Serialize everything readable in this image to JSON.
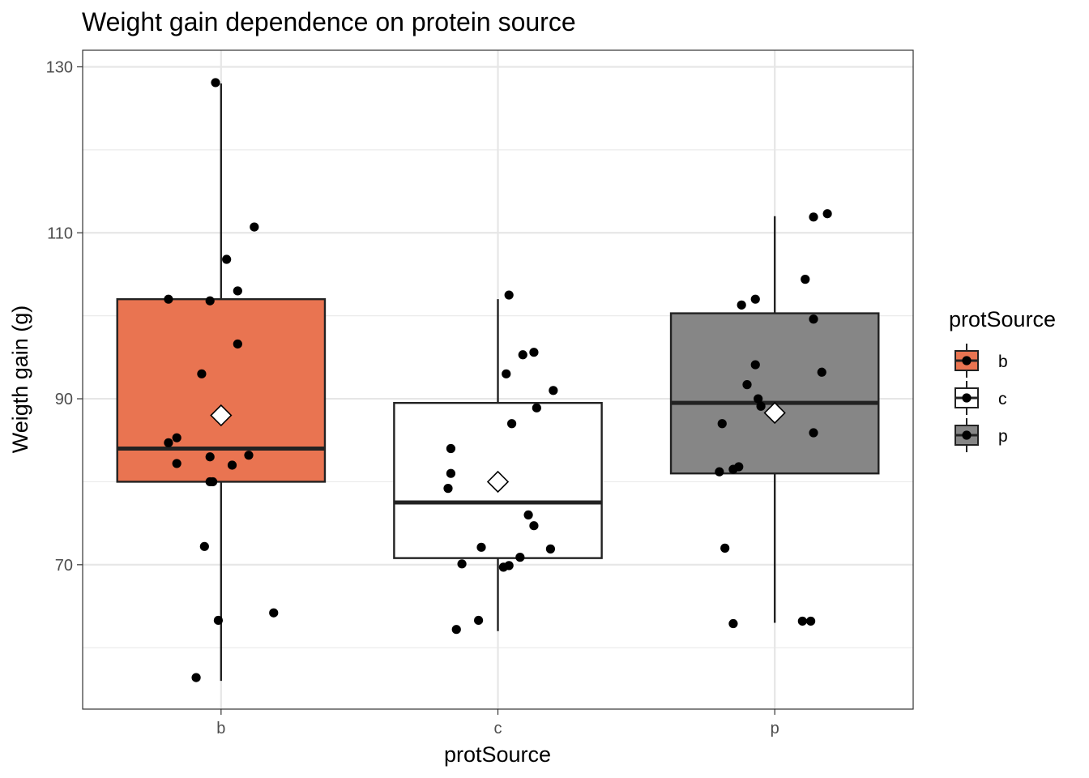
{
  "chart_data": {
    "type": "box",
    "title": "Weight gain dependence on protein source",
    "xlabel": "protSource",
    "ylabel": "Weigth gain (g)",
    "categories": [
      "b",
      "c",
      "p"
    ],
    "ylim": [
      52.6,
      132.0
    ],
    "yticks": [
      70,
      90,
      110,
      130
    ],
    "grid": true,
    "legend": {
      "title": "protSource",
      "position": "right",
      "entries": [
        "b",
        "c",
        "p"
      ]
    },
    "colors": {
      "b": "#e97451",
      "c": "#ffffff",
      "p": "#868686"
    },
    "boxes": [
      {
        "category": "b",
        "min": 56.0,
        "q1": 80.0,
        "median": 84.0,
        "q3": 102.0,
        "max": 128.0,
        "mean": 88.0
      },
      {
        "category": "c",
        "min": 62.0,
        "q1": 70.8,
        "median": 77.5,
        "q3": 89.5,
        "max": 102.0,
        "mean": 80.0
      },
      {
        "category": "p",
        "min": 63.0,
        "q1": 81.0,
        "median": 89.5,
        "q3": 100.3,
        "max": 112.0,
        "mean": 88.3
      }
    ],
    "points": [
      {
        "category": "b",
        "jitter": -0.02,
        "y": 128.1
      },
      {
        "category": "b",
        "jitter": 0.12,
        "y": 110.7
      },
      {
        "category": "b",
        "jitter": 0.02,
        "y": 106.8
      },
      {
        "category": "b",
        "jitter": 0.06,
        "y": 103.0
      },
      {
        "category": "b",
        "jitter": -0.19,
        "y": 102.0
      },
      {
        "category": "b",
        "jitter": -0.04,
        "y": 101.8
      },
      {
        "category": "b",
        "jitter": 0.06,
        "y": 96.6
      },
      {
        "category": "b",
        "jitter": -0.07,
        "y": 93.0
      },
      {
        "category": "b",
        "jitter": -0.16,
        "y": 85.3
      },
      {
        "category": "b",
        "jitter": -0.19,
        "y": 84.7
      },
      {
        "category": "b",
        "jitter": 0.1,
        "y": 83.2
      },
      {
        "category": "b",
        "jitter": -0.04,
        "y": 83.0
      },
      {
        "category": "b",
        "jitter": -0.16,
        "y": 82.2
      },
      {
        "category": "b",
        "jitter": 0.04,
        "y": 82.0
      },
      {
        "category": "b",
        "jitter": -0.04,
        "y": 80.0
      },
      {
        "category": "b",
        "jitter": -0.03,
        "y": 80.0
      },
      {
        "category": "b",
        "jitter": -0.06,
        "y": 72.2
      },
      {
        "category": "b",
        "jitter": 0.19,
        "y": 64.2
      },
      {
        "category": "b",
        "jitter": -0.01,
        "y": 63.3
      },
      {
        "category": "b",
        "jitter": -0.09,
        "y": 56.4
      },
      {
        "category": "c",
        "jitter": 0.04,
        "y": 102.5
      },
      {
        "category": "c",
        "jitter": 0.13,
        "y": 95.6
      },
      {
        "category": "c",
        "jitter": 0.09,
        "y": 95.3
      },
      {
        "category": "c",
        "jitter": 0.03,
        "y": 93.0
      },
      {
        "category": "c",
        "jitter": 0.2,
        "y": 91.0
      },
      {
        "category": "c",
        "jitter": 0.14,
        "y": 88.9
      },
      {
        "category": "c",
        "jitter": 0.05,
        "y": 87.0
      },
      {
        "category": "c",
        "jitter": -0.17,
        "y": 84.0
      },
      {
        "category": "c",
        "jitter": -0.17,
        "y": 81.0
      },
      {
        "category": "c",
        "jitter": -0.18,
        "y": 79.2
      },
      {
        "category": "c",
        "jitter": 0.11,
        "y": 76.0
      },
      {
        "category": "c",
        "jitter": 0.13,
        "y": 74.7
      },
      {
        "category": "c",
        "jitter": -0.06,
        "y": 72.1
      },
      {
        "category": "c",
        "jitter": 0.19,
        "y": 71.9
      },
      {
        "category": "c",
        "jitter": 0.08,
        "y": 70.9
      },
      {
        "category": "c",
        "jitter": -0.13,
        "y": 70.1
      },
      {
        "category": "c",
        "jitter": 0.04,
        "y": 69.9
      },
      {
        "category": "c",
        "jitter": 0.02,
        "y": 69.7
      },
      {
        "category": "c",
        "jitter": -0.07,
        "y": 63.3
      },
      {
        "category": "c",
        "jitter": -0.15,
        "y": 62.2
      },
      {
        "category": "p",
        "jitter": 0.19,
        "y": 112.3
      },
      {
        "category": "p",
        "jitter": 0.14,
        "y": 111.9
      },
      {
        "category": "p",
        "jitter": 0.11,
        "y": 104.4
      },
      {
        "category": "p",
        "jitter": -0.07,
        "y": 102.0
      },
      {
        "category": "p",
        "jitter": -0.12,
        "y": 101.3
      },
      {
        "category": "p",
        "jitter": 0.14,
        "y": 99.6
      },
      {
        "category": "p",
        "jitter": -0.07,
        "y": 94.1
      },
      {
        "category": "p",
        "jitter": 0.17,
        "y": 93.2
      },
      {
        "category": "p",
        "jitter": -0.1,
        "y": 91.7
      },
      {
        "category": "p",
        "jitter": -0.06,
        "y": 90.0
      },
      {
        "category": "p",
        "jitter": -0.05,
        "y": 89.1
      },
      {
        "category": "p",
        "jitter": -0.19,
        "y": 87.0
      },
      {
        "category": "p",
        "jitter": 0.14,
        "y": 85.9
      },
      {
        "category": "p",
        "jitter": -0.13,
        "y": 81.8
      },
      {
        "category": "p",
        "jitter": -0.15,
        "y": 81.5
      },
      {
        "category": "p",
        "jitter": -0.2,
        "y": 81.2
      },
      {
        "category": "p",
        "jitter": -0.18,
        "y": 72.0
      },
      {
        "category": "p",
        "jitter": -0.15,
        "y": 62.9
      },
      {
        "category": "p",
        "jitter": 0.1,
        "y": 63.2
      },
      {
        "category": "p",
        "jitter": 0.13,
        "y": 63.2
      }
    ]
  }
}
